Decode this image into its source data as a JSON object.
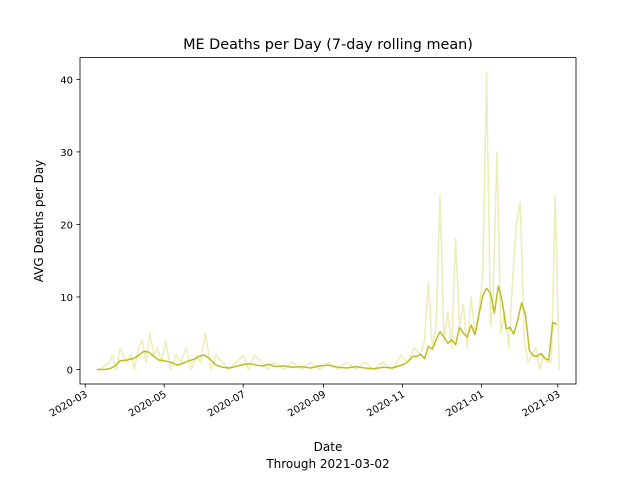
{
  "chart_data": {
    "type": "line",
    "title": "ME Deaths per Day (7-day rolling mean)",
    "xlabel": "Date",
    "xlabel_sub": "Through 2021-03-02",
    "ylabel": "AVG Deaths per Day",
    "xlim": [
      "2020-02-26",
      "2021-03-15"
    ],
    "ylim": [
      -2,
      43
    ],
    "yticks": [
      0,
      10,
      20,
      30,
      40
    ],
    "xticks": [
      "2020-03-01",
      "2020-05-01",
      "2020-07-01",
      "2020-09-01",
      "2020-11-01",
      "2021-01-01",
      "2021-03-01"
    ],
    "xtick_labels": [
      "2020-03",
      "2020-05",
      "2020-07",
      "2020-09",
      "2020-11",
      "2021-01",
      "2021-03"
    ],
    "grid": false,
    "colors": {
      "rolling": "#bcbd22",
      "daily": "#ecedb8"
    },
    "series": [
      {
        "role": "daily",
        "x": [
          "2020-03-12",
          "2020-03-20",
          "2020-03-22",
          "2020-03-25",
          "2020-03-28",
          "2020-04-02",
          "2020-04-05",
          "2020-04-08",
          "2020-04-11",
          "2020-04-14",
          "2020-04-17",
          "2020-04-20",
          "2020-04-23",
          "2020-04-26",
          "2020-04-29",
          "2020-05-02",
          "2020-05-06",
          "2020-05-10",
          "2020-05-14",
          "2020-05-18",
          "2020-05-22",
          "2020-05-26",
          "2020-05-29",
          "2020-06-02",
          "2020-06-06",
          "2020-06-10",
          "2020-06-15",
          "2020-06-20",
          "2020-06-26",
          "2020-07-01",
          "2020-07-05",
          "2020-07-10",
          "2020-07-15",
          "2020-07-20",
          "2020-07-25",
          "2020-08-01",
          "2020-08-08",
          "2020-08-15",
          "2020-08-22",
          "2020-08-29",
          "2020-09-05",
          "2020-09-12",
          "2020-09-19",
          "2020-09-26",
          "2020-10-03",
          "2020-10-10",
          "2020-10-17",
          "2020-10-24",
          "2020-10-31",
          "2020-11-05",
          "2020-11-10",
          "2020-11-15",
          "2020-11-18",
          "2020-11-21",
          "2020-11-24",
          "2020-11-27",
          "2020-11-30",
          "2020-12-03",
          "2020-12-06",
          "2020-12-09",
          "2020-12-12",
          "2020-12-15",
          "2020-12-18",
          "2020-12-21",
          "2020-12-24",
          "2020-12-27",
          "2020-12-30",
          "2021-01-02",
          "2021-01-05",
          "2021-01-08",
          "2021-01-10",
          "2021-01-13",
          "2021-01-16",
          "2021-01-19",
          "2021-01-22",
          "2021-01-25",
          "2021-01-28",
          "2021-01-31",
          "2021-02-03",
          "2021-02-06",
          "2021-02-09",
          "2021-02-12",
          "2021-02-15",
          "2021-02-18",
          "2021-02-21",
          "2021-02-24",
          "2021-02-27",
          "2021-03-02"
        ],
        "y": [
          0,
          1,
          2,
          0,
          3,
          1,
          2,
          0,
          3,
          4,
          1,
          5,
          2,
          3,
          1,
          4,
          0,
          2,
          1,
          3,
          0,
          2,
          1,
          5,
          0,
          2,
          1,
          0,
          1,
          2,
          0,
          2,
          1,
          0,
          1,
          0,
          1,
          0,
          1,
          0,
          1,
          0,
          1,
          0,
          1,
          0,
          1,
          0,
          2,
          1,
          3,
          2,
          4,
          12,
          3,
          6,
          24,
          4,
          8,
          3,
          18,
          6,
          9,
          3,
          10,
          5,
          8,
          13,
          41,
          6,
          10,
          30,
          5,
          8,
          3,
          12,
          20,
          23,
          4,
          1,
          2,
          3,
          0,
          2,
          1,
          1,
          24,
          0
        ]
      },
      {
        "role": "rolling",
        "x": [
          "2020-03-10",
          "2020-03-16",
          "2020-03-20",
          "2020-03-24",
          "2020-03-28",
          "2020-04-02",
          "2020-04-07",
          "2020-04-11",
          "2020-04-15",
          "2020-04-19",
          "2020-04-23",
          "2020-04-27",
          "2020-05-01",
          "2020-05-06",
          "2020-05-11",
          "2020-05-16",
          "2020-05-20",
          "2020-05-24",
          "2020-05-28",
          "2020-06-01",
          "2020-06-05",
          "2020-06-10",
          "2020-06-15",
          "2020-06-20",
          "2020-06-25",
          "2020-07-01",
          "2020-07-06",
          "2020-07-11",
          "2020-07-16",
          "2020-07-21",
          "2020-07-26",
          "2020-08-01",
          "2020-08-08",
          "2020-08-15",
          "2020-08-22",
          "2020-08-29",
          "2020-09-05",
          "2020-09-12",
          "2020-09-19",
          "2020-09-26",
          "2020-10-03",
          "2020-10-10",
          "2020-10-17",
          "2020-10-24",
          "2020-10-31",
          "2020-11-03",
          "2020-11-06",
          "2020-11-09",
          "2020-11-12",
          "2020-11-15",
          "2020-11-18",
          "2020-11-21",
          "2020-11-24",
          "2020-11-27",
          "2020-11-30",
          "2020-12-03",
          "2020-12-06",
          "2020-12-09",
          "2020-12-12",
          "2020-12-15",
          "2020-12-18",
          "2020-12-21",
          "2020-12-24",
          "2020-12-27",
          "2020-12-30",
          "2021-01-02",
          "2021-01-05",
          "2021-01-08",
          "2021-01-11",
          "2021-01-14",
          "2021-01-17",
          "2021-01-20",
          "2021-01-23",
          "2021-01-26",
          "2021-01-29",
          "2021-02-01",
          "2021-02-04",
          "2021-02-07",
          "2021-02-10",
          "2021-02-13",
          "2021-02-16",
          "2021-02-19",
          "2021-02-22",
          "2021-02-25",
          "2021-02-28"
        ],
        "y": [
          0,
          0,
          0.1,
          0.5,
          1.2,
          1.3,
          1.5,
          1.9,
          2.5,
          2.4,
          1.8,
          1.3,
          1.2,
          1,
          0.6,
          0.9,
          1.2,
          1.4,
          1.8,
          2,
          1.5,
          0.6,
          0.3,
          0.2,
          0.4,
          0.7,
          0.8,
          0.6,
          0.5,
          0.7,
          0.4,
          0.5,
          0.3,
          0.4,
          0.2,
          0.5,
          0.6,
          0.3,
          0.2,
          0.4,
          0.2,
          0.1,
          0.3,
          0.2,
          0.6,
          0.8,
          1.2,
          1.8,
          1.8,
          2.1,
          1.5,
          3.2,
          2.8,
          4.1,
          5.2,
          4.5,
          3.6,
          4.1,
          3.4,
          5.8,
          5,
          4.5,
          6.1,
          4.8,
          7.5,
          10.2,
          11.2,
          10.5,
          7.8,
          11.5,
          9.4,
          5.6,
          5.8,
          4.9,
          6.8,
          9.2,
          7.5,
          2.6,
          1.9,
          1.8,
          2.2,
          1.5,
          1.3,
          6.5,
          6.2
        ]
      }
    ]
  }
}
